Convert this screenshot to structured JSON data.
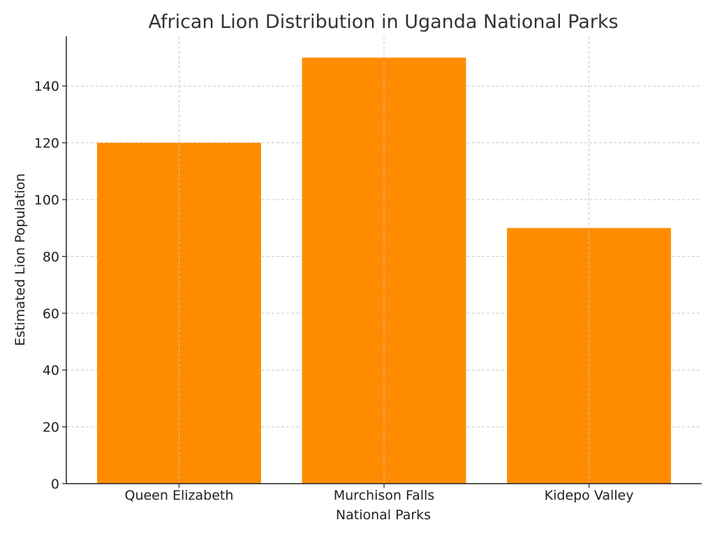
{
  "chart_data": {
    "type": "bar",
    "title": "African Lion Distribution in Uganda National Parks",
    "xlabel": "National Parks",
    "ylabel": "Estimated Lion Population",
    "categories": [
      "Queen Elizabeth",
      "Murchison Falls",
      "Kidepo Valley"
    ],
    "values": [
      120,
      150,
      90
    ],
    "ylim": [
      0,
      157.5
    ],
    "yticks": [
      0,
      20,
      40,
      60,
      80,
      100,
      120,
      140
    ],
    "grid": true,
    "legend": "none",
    "bar_color": "#ff8c00"
  }
}
